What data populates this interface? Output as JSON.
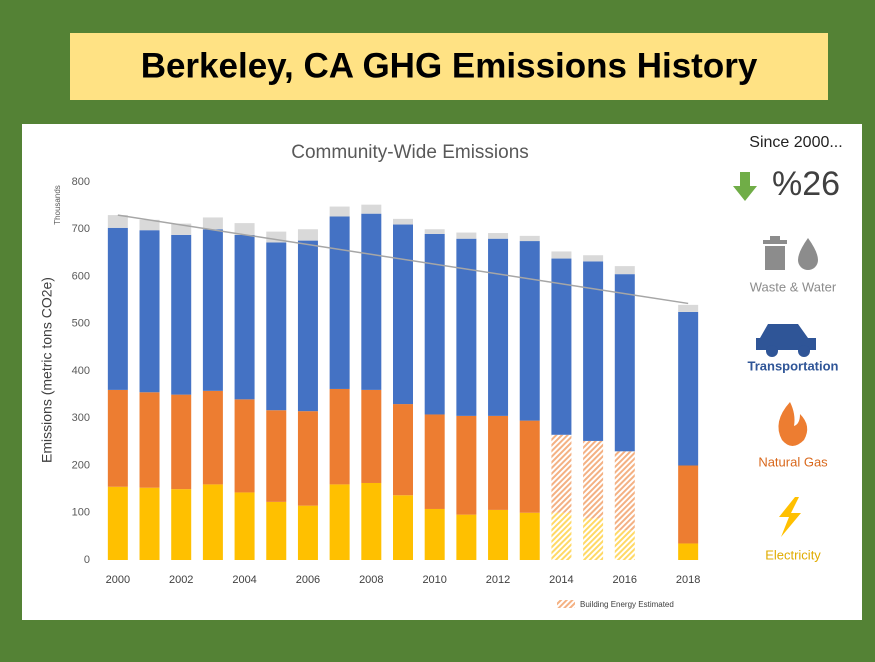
{
  "slide_title": "Berkeley, CA GHG Emissions History",
  "chart_data": {
    "type": "stacked_bar",
    "title": "Community-Wide Emissions",
    "y_label": "Emissions (metric tons CO2e)",
    "y_unit": "Thousands",
    "categories": [
      "2000",
      null,
      "2002",
      null,
      "2004",
      null,
      "2006",
      null,
      "2008",
      null,
      "2010",
      null,
      "2012",
      null,
      "2014",
      null,
      "2016",
      null,
      "2018"
    ],
    "series": [
      {
        "name": "Electricity",
        "color": "#ffc000",
        "values": [
          155,
          153,
          150,
          160,
          143,
          123,
          115,
          160,
          163,
          137,
          108,
          96,
          106,
          100,
          100,
          88,
          63,
          null,
          35
        ]
      },
      {
        "name": "Natural Gas",
        "color": "#ed7d31",
        "values": [
          205,
          202,
          200,
          198,
          197,
          194,
          200,
          202,
          197,
          193,
          200,
          209,
          199,
          195,
          165,
          164,
          167,
          null,
          165
        ]
      },
      {
        "name": "Transportation",
        "color": "#4472c4",
        "values": [
          343,
          343,
          338,
          342,
          348,
          355,
          361,
          365,
          373,
          380,
          382,
          375,
          375,
          380,
          373,
          380,
          375,
          null,
          325
        ]
      },
      {
        "name": "Waste & Water",
        "color": "#d9d9d9",
        "values": [
          27,
          22,
          24,
          25,
          25,
          23,
          24,
          21,
          19,
          12,
          10,
          13,
          12,
          11,
          15,
          13,
          17,
          null,
          15
        ]
      }
    ],
    "estimated": [
      false,
      false,
      false,
      false,
      false,
      false,
      false,
      false,
      false,
      false,
      false,
      false,
      false,
      false,
      true,
      true,
      true,
      false,
      false
    ],
    "estimated_label": "Building Energy Estimated",
    "trend": {
      "start": 730,
      "end": 543,
      "color": "#a6a6a6"
    },
    "ylim": [
      0,
      800
    ],
    "yticks": [
      0,
      100,
      200,
      300,
      400,
      500,
      600,
      700,
      800
    ]
  },
  "summary": {
    "heading": "Since 2000...",
    "change": "%26"
  },
  "legend_colors": {
    "Waste & Water": "#8c8c8c",
    "Transportation": "#2f5597",
    "Natural Gas": "#d9681c",
    "Electricity": "#e0ac00"
  }
}
